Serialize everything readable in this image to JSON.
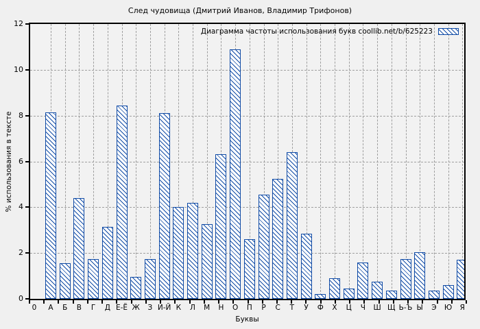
{
  "title": "След чудовища (Дмитрий Иванов, Владимир Трифонов)",
  "legend_label": "Диаграмма частоты использования букв coollib.net/b/625223",
  "axes": {
    "xlabel": "Буквы",
    "ylabel": "% использования в тексте",
    "origin_label": "0"
  },
  "colors": {
    "bar_blue": "#0f4aa5",
    "grid_gray": "#9e9e9e",
    "background": "#f0f0f0",
    "plot_background": "#f2f2f2",
    "bar_fill": "#ffffff",
    "axis_black": "#000000"
  },
  "chart_data": {
    "type": "bar",
    "title": "След чудовища (Дмитрий Иванов, Владимир Трифонов)",
    "legend": "Диаграмма частоты использования букв coollib.net/b/625223",
    "xlabel": "Буквы",
    "ylabel": "% использования в тексте",
    "categories": [
      "А",
      "Б",
      "В",
      "Г",
      "Д",
      "Е-Ё",
      "Ж",
      "З",
      "И-Й",
      "К",
      "Л",
      "М",
      "Н",
      "О",
      "П",
      "Р",
      "С",
      "Т",
      "У",
      "Ф",
      "Х",
      "Ц",
      "Ч",
      "Ш",
      "Щ",
      "Ь-Ъ",
      "Ы",
      "Э",
      "Ю",
      "Я"
    ],
    "values": [
      8.15,
      1.55,
      4.4,
      1.75,
      3.15,
      8.45,
      0.95,
      1.75,
      8.1,
      4.0,
      4.2,
      3.25,
      6.3,
      10.9,
      2.6,
      4.55,
      5.25,
      6.4,
      2.85,
      0.2,
      0.9,
      0.45,
      1.6,
      0.75,
      0.35,
      1.75,
      2.05,
      0.35,
      0.6,
      1.7
    ],
    "ylim": [
      0,
      12
    ],
    "yticks": [
      0,
      2,
      4,
      6,
      8,
      10,
      12
    ],
    "grid": true,
    "hatch": "diagonal-backslash",
    "legend_position": "top-right-inside"
  }
}
